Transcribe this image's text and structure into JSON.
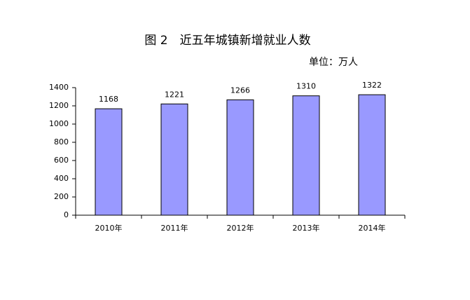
{
  "chart_data": {
    "type": "bar",
    "title": "图 2　近五年城镇新增就业人数",
    "subtitle": "单位：万人",
    "categories": [
      "2010年",
      "2011年",
      "2012年",
      "2013年",
      "2014年"
    ],
    "values": [
      1168,
      1221,
      1266,
      1310,
      1322
    ],
    "color": "#9999ff",
    "ylim": [
      0,
      1400
    ],
    "yticks": [
      0,
      200,
      400,
      600,
      800,
      1000,
      1200,
      1400
    ],
    "grid": false
  }
}
